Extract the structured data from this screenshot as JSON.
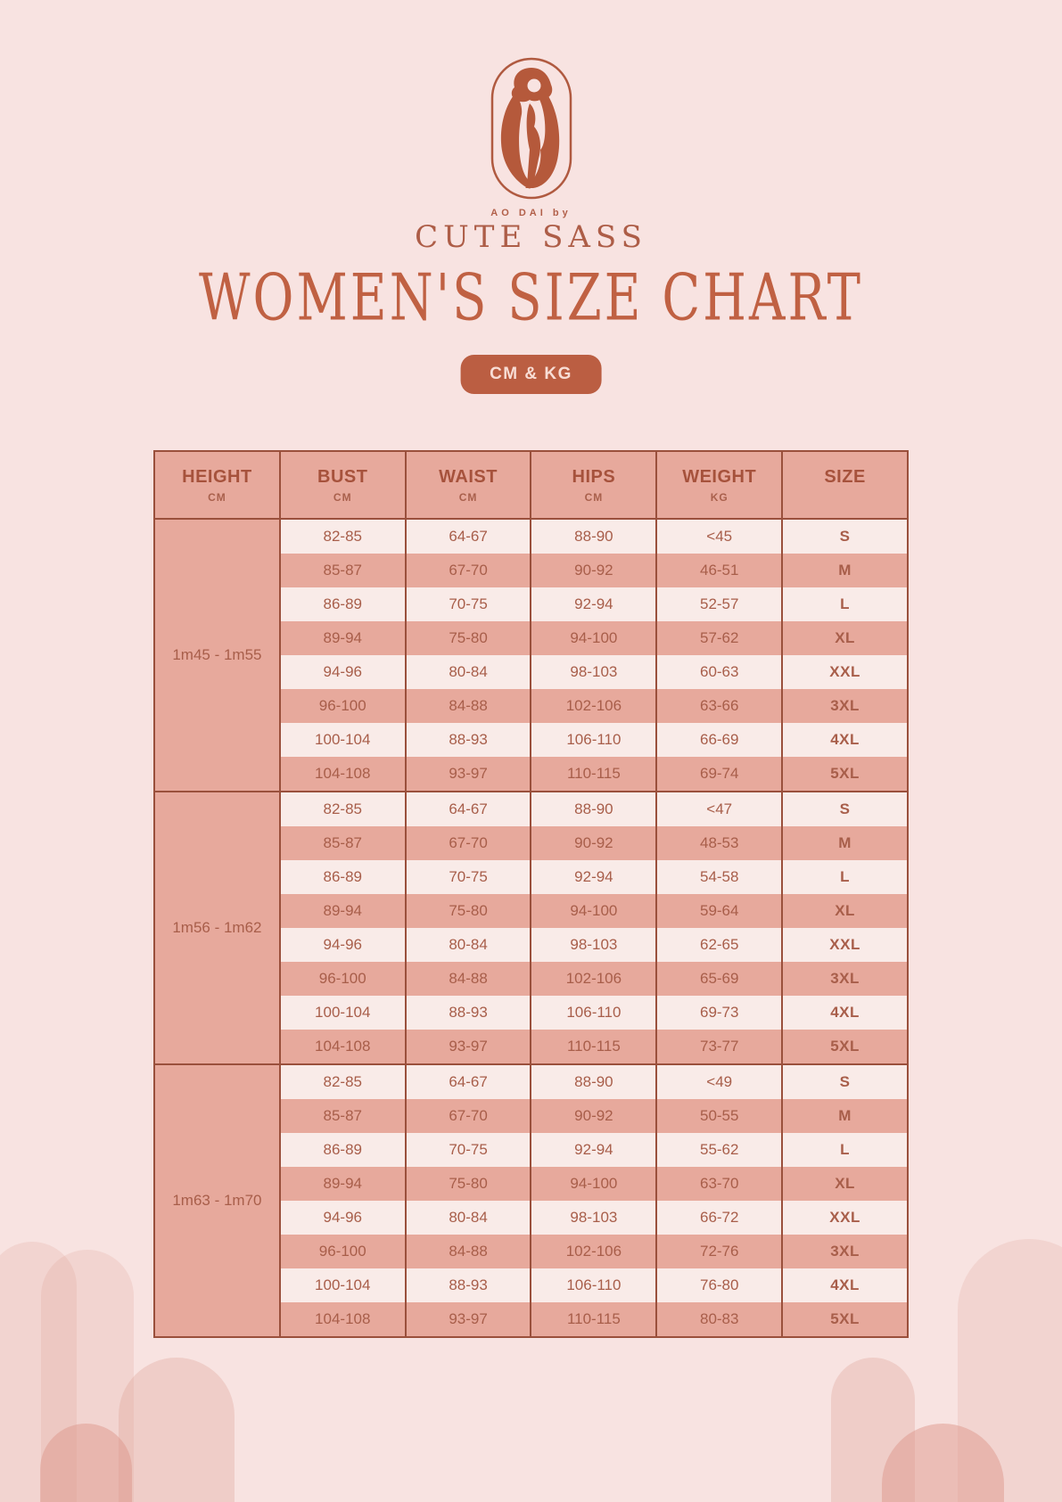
{
  "brand": {
    "tagline": "AO DAI by",
    "name": "CUTE SASS",
    "logo_icon": "woman-in-ao-dai-oval-emblem"
  },
  "page": {
    "title": "WOMEN'S SIZE CHART",
    "badge_label": "CM & KG"
  },
  "table": {
    "headers": [
      {
        "label": "HEIGHT",
        "unit": "CM"
      },
      {
        "label": "BUST",
        "unit": "CM"
      },
      {
        "label": "WAIST",
        "unit": "CM"
      },
      {
        "label": "HIPS",
        "unit": "CM"
      },
      {
        "label": "WEIGHT",
        "unit": "KG"
      },
      {
        "label": "SIZE",
        "unit": ""
      }
    ],
    "groups": [
      {
        "height": "1m45 - 1m55",
        "rows": [
          [
            "82-85",
            "64-67",
            "88-90",
            "<45",
            "S"
          ],
          [
            "85-87",
            "67-70",
            "90-92",
            "46-51",
            "M"
          ],
          [
            "86-89",
            "70-75",
            "92-94",
            "52-57",
            "L"
          ],
          [
            "89-94",
            "75-80",
            "94-100",
            "57-62",
            "XL"
          ],
          [
            "94-96",
            "80-84",
            "98-103",
            "60-63",
            "XXL"
          ],
          [
            "96-100",
            "84-88",
            "102-106",
            "63-66",
            "3XL"
          ],
          [
            "100-104",
            "88-93",
            "106-110",
            "66-69",
            "4XL"
          ],
          [
            "104-108",
            "93-97",
            "110-115",
            "69-74",
            "5XL"
          ]
        ]
      },
      {
        "height": "1m56 - 1m62",
        "rows": [
          [
            "82-85",
            "64-67",
            "88-90",
            "<47",
            "S"
          ],
          [
            "85-87",
            "67-70",
            "90-92",
            "48-53",
            "M"
          ],
          [
            "86-89",
            "70-75",
            "92-94",
            "54-58",
            "L"
          ],
          [
            "89-94",
            "75-80",
            "94-100",
            "59-64",
            "XL"
          ],
          [
            "94-96",
            "80-84",
            "98-103",
            "62-65",
            "XXL"
          ],
          [
            "96-100",
            "84-88",
            "102-106",
            "65-69",
            "3XL"
          ],
          [
            "100-104",
            "88-93",
            "106-110",
            "69-73",
            "4XL"
          ],
          [
            "104-108",
            "93-97",
            "110-115",
            "73-77",
            "5XL"
          ]
        ]
      },
      {
        "height": "1m63 - 1m70",
        "rows": [
          [
            "82-85",
            "64-67",
            "88-90",
            "<49",
            "S"
          ],
          [
            "85-87",
            "67-70",
            "90-92",
            "50-55",
            "M"
          ],
          [
            "86-89",
            "70-75",
            "92-94",
            "55-62",
            "L"
          ],
          [
            "89-94",
            "75-80",
            "94-100",
            "63-70",
            "XL"
          ],
          [
            "94-96",
            "80-84",
            "98-103",
            "66-72",
            "XXL"
          ],
          [
            "96-100",
            "84-88",
            "102-106",
            "72-76",
            "3XL"
          ],
          [
            "100-104",
            "88-93",
            "106-110",
            "76-80",
            "4XL"
          ],
          [
            "104-108",
            "93-97",
            "110-115",
            "80-83",
            "5XL"
          ]
        ]
      }
    ]
  },
  "colors": {
    "background": "#f8e3e1",
    "accent_terracotta": "#b95c3e",
    "table_row_dark": "#e7a99c",
    "table_row_light": "#f9ebe8",
    "table_border": "#9a503c",
    "badge_bg": "#bb5e42",
    "badge_text": "#f8ddd5",
    "arch_tint": "#db9a8e"
  }
}
